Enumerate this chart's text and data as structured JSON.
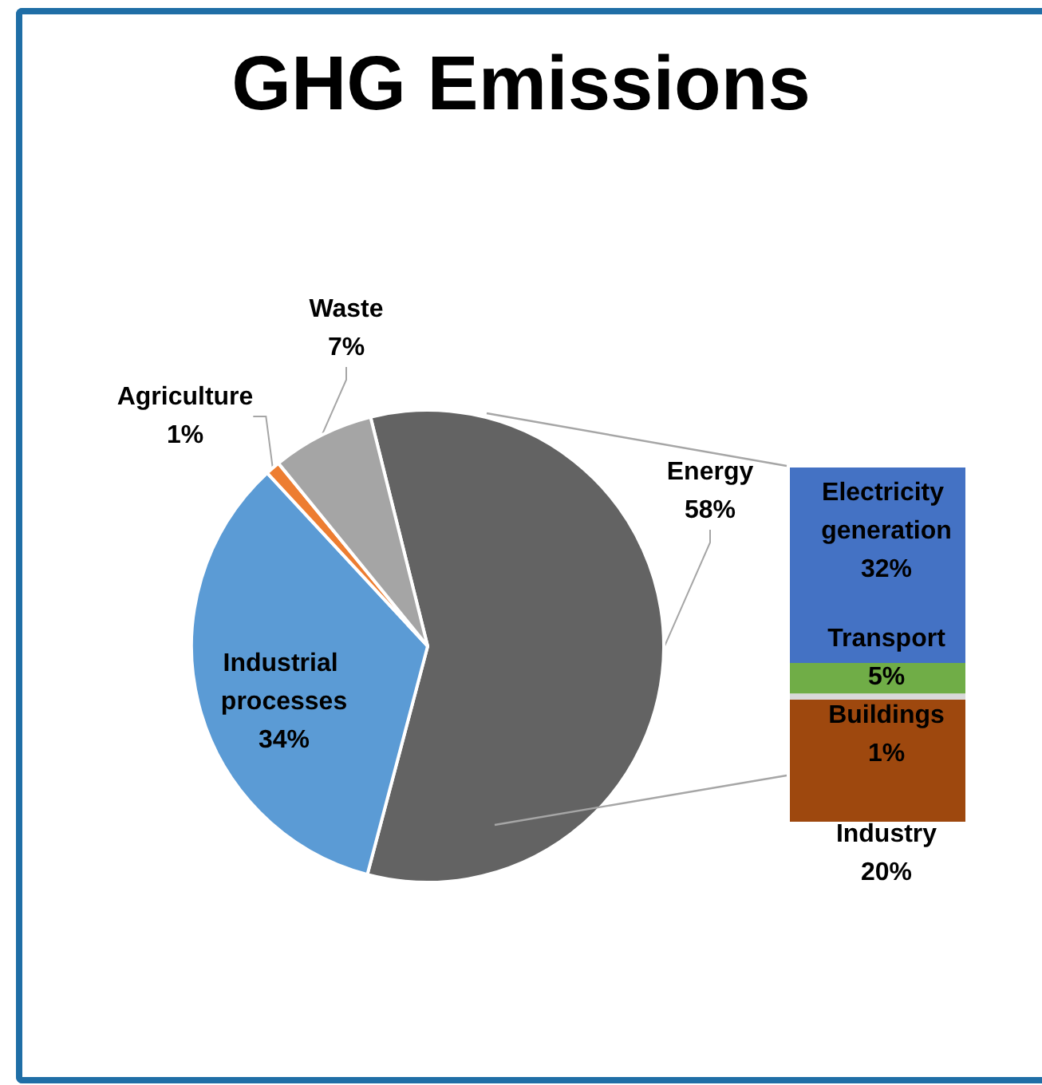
{
  "chart_data": [
    {
      "type": "pie",
      "title": "GHG Emissions",
      "categories": [
        "Energy",
        "Industrial processes",
        "Agriculture",
        "Waste"
      ],
      "values": [
        58,
        34,
        1,
        7
      ],
      "colors": [
        "#636363",
        "#5b9bd5",
        "#ed7d31",
        "#a5a5a5"
      ],
      "value_labels": [
        "58%",
        "34%",
        "1%",
        "7%"
      ]
    },
    {
      "type": "bar",
      "stacked": true,
      "categories": [
        null
      ],
      "series": [
        {
          "name": "Industry",
          "color": "#9e480e",
          "values": [
            20
          ],
          "value_labels": [
            "20%"
          ]
        },
        {
          "name": "Buildings",
          "color": "#d9d9d9",
          "values": [
            1
          ],
          "value_labels": [
            "1%"
          ]
        },
        {
          "name": "Transport",
          "color": "#70ad47",
          "values": [
            5
          ],
          "value_labels": [
            "5%"
          ]
        },
        {
          "name": "Electricity generation",
          "color": "#4472c4",
          "values": [
            32
          ],
          "value_labels": [
            "32%"
          ]
        }
      ]
    }
  ]
}
